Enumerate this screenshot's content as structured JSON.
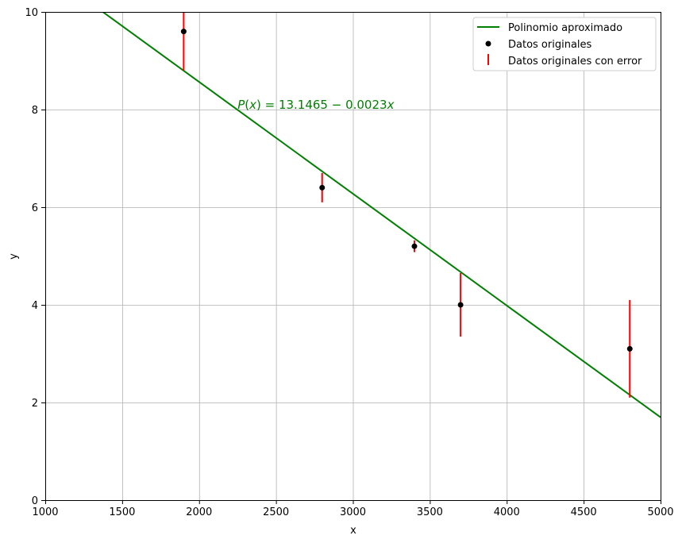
{
  "chart_data": {
    "type": "scatter",
    "xlabel": "x",
    "ylabel": "y",
    "xlim": [
      1000,
      5000
    ],
    "ylim": [
      0,
      10
    ],
    "xticks": [
      1000,
      1500,
      2000,
      2500,
      3000,
      3500,
      4000,
      4500,
      5000
    ],
    "yticks": [
      0,
      2,
      4,
      6,
      8,
      10
    ],
    "grid": true,
    "legend_position": "top-right",
    "fit_line": {
      "name": "Polinomio aproximado",
      "color": "#008000",
      "intercept": 13.1465,
      "slope": -0.00229,
      "x_range": [
        1000,
        5000
      ]
    },
    "points": {
      "name": "Datos originales",
      "color": "#000000",
      "x": [
        1900,
        2800,
        3400,
        3700,
        4800
      ],
      "y": [
        9.6,
        6.4,
        5.2,
        4.0,
        3.1
      ]
    },
    "error_bars": {
      "name": "Datos originales con error",
      "color": "#ff0000",
      "error": [
        0.8,
        0.3,
        0.12,
        0.65,
        1.0
      ]
    },
    "annotation": {
      "prefix": "P",
      "var": "x",
      "text": " = 13.1465 − 0.0023",
      "suffix_var": "x",
      "x": 2250,
      "y": 8.1
    }
  }
}
